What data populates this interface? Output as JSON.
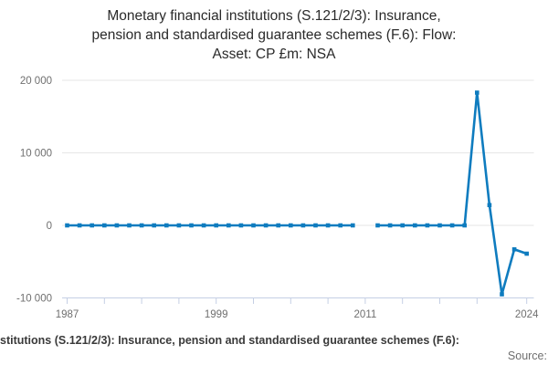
{
  "title": "Monetary financial institutions (S.121/2/3): Insurance,\npension and standardised guarantee schemes (F.6): Flow:\nAsset: CP £m: NSA",
  "footer": {
    "series_line": "stitutions (S.121/2/3): Insurance, pension and standardised guarantee schemes (F.6):",
    "source_label": "Source:"
  },
  "colors": {
    "line": "#0f7cbf",
    "grid": "#e6e6e6",
    "axis": "#c5cfe4",
    "tick_label": "#6f6f6f",
    "title_text": "#2a2a2a",
    "footer_text": "#3a3a3a"
  },
  "chart_data": {
    "type": "line",
    "title": "Monetary financial institutions (S.121/2/3): Insurance, pension and standardised guarantee schemes (F.6): Flow: Asset: CP £m: NSA",
    "xlabel": "",
    "ylabel": "",
    "x": [
      1987,
      1988,
      1989,
      1990,
      1991,
      1992,
      1993,
      1994,
      1995,
      1996,
      1997,
      1998,
      1999,
      2000,
      2001,
      2002,
      2003,
      2004,
      2005,
      2006,
      2007,
      2008,
      2009,
      2010,
      2011,
      2012,
      2013,
      2014,
      2015,
      2016,
      2017,
      2018,
      2019,
      2020,
      2021,
      2022,
      2023,
      2024
    ],
    "values": [
      0,
      0,
      0,
      0,
      0,
      0,
      0,
      0,
      0,
      0,
      0,
      0,
      0,
      0,
      0,
      0,
      0,
      0,
      0,
      0,
      0,
      0,
      0,
      0,
      null,
      0,
      0,
      0,
      0,
      0,
      0,
      0,
      0,
      18300,
      2800,
      -9500,
      -3300,
      -3900
    ],
    "missing_years": [
      2011
    ],
    "ylim": [
      -10000,
      20000
    ],
    "yticks": [
      {
        "value": 20000,
        "label": "20 000"
      },
      {
        "value": 10000,
        "label": "10 000"
      },
      {
        "value": 0,
        "label": "0"
      },
      {
        "value": -10000,
        "label": "-10 000"
      }
    ],
    "xticks_labeled": [
      {
        "value": 1987,
        "label": "1987"
      },
      {
        "value": 1999,
        "label": "1999"
      },
      {
        "value": 2011,
        "label": "2011"
      },
      {
        "value": 2024,
        "label": "2024"
      }
    ],
    "xticks_minor": [
      1987,
      1990,
      1993,
      1996,
      1999,
      2002,
      2005,
      2008,
      2011,
      2014,
      2017,
      2020,
      2024
    ],
    "grid": true,
    "legend": false,
    "marker": "square"
  }
}
